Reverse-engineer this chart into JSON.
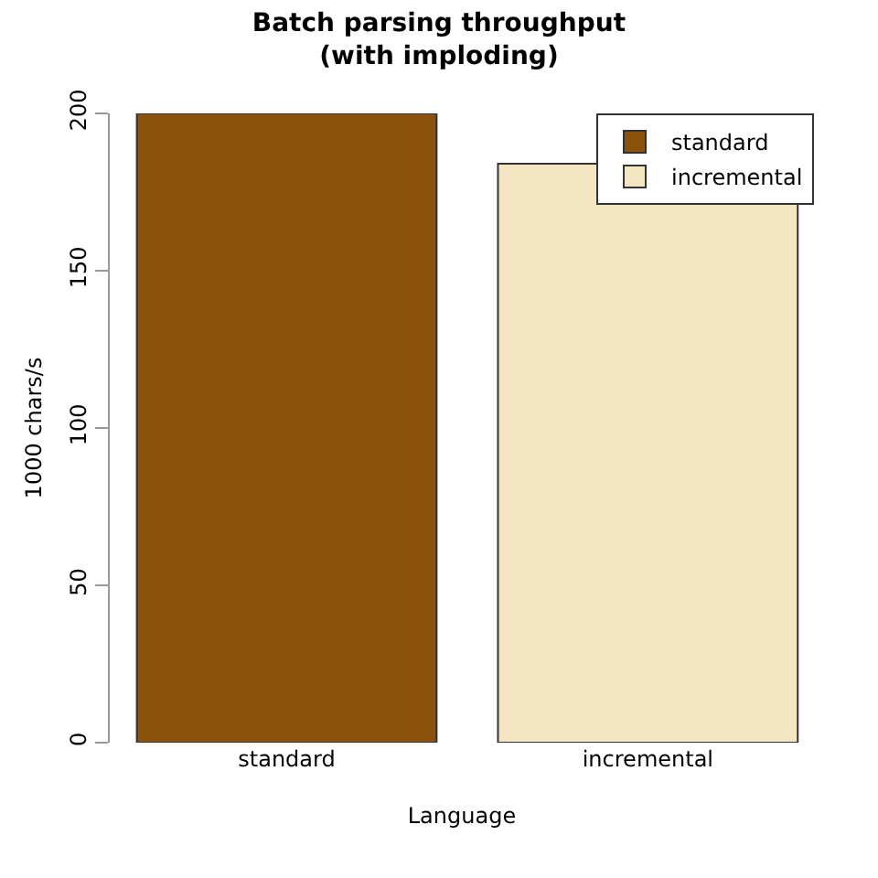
{
  "chart_data": {
    "type": "bar",
    "title": "Batch parsing throughput\n(with imploding)",
    "xlabel": "Language",
    "ylabel": "1000 chars/s",
    "categories": [
      "standard",
      "incremental"
    ],
    "series": [
      {
        "name": "standard",
        "color": "#8b520b",
        "values": [
          200,
          null
        ]
      },
      {
        "name": "incremental",
        "color": "#f5e6c3",
        "values": [
          null,
          184
        ]
      }
    ],
    "ylim": [
      0,
      200
    ],
    "yticks": [
      0,
      50,
      100,
      150,
      200
    ],
    "grid": false,
    "legend": "top right"
  }
}
